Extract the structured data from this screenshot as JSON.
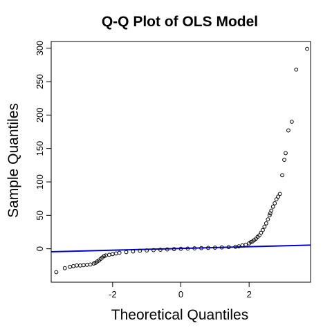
{
  "chart_data": {
    "type": "scatter",
    "title": "Q-Q Plot of OLS Model",
    "xlabel": "Theoretical Quantiles",
    "ylabel": "Sample Quantiles",
    "xlim": [
      -3.8,
      3.8
    ],
    "ylim": [
      -50,
      310
    ],
    "x_ticks": [
      -2,
      0,
      2
    ],
    "x_tick_labels": [
      "-2",
      "0",
      "2"
    ],
    "y_ticks": [
      0,
      50,
      100,
      150,
      200,
      250,
      300
    ],
    "y_tick_labels": [
      "0",
      "50",
      "100",
      "150",
      "200",
      "250",
      "300"
    ],
    "grid": false,
    "reference_line": {
      "intercept": 0.5,
      "slope": 1.3,
      "color": "#0000cc"
    },
    "point_color": "#000000",
    "series": [
      {
        "values": [
          [
            -3.65,
            -35
          ],
          [
            -3.4,
            -29
          ],
          [
            -3.25,
            -27
          ],
          [
            -3.15,
            -26
          ],
          [
            -3.05,
            -25
          ],
          [
            -2.95,
            -25
          ],
          [
            -2.85,
            -24.5
          ],
          [
            -2.75,
            -24
          ],
          [
            -2.65,
            -23.5
          ],
          [
            -2.55,
            -22
          ],
          [
            -2.5,
            -21
          ],
          [
            -2.45,
            -19
          ],
          [
            -2.4,
            -17.5
          ],
          [
            -2.35,
            -15
          ],
          [
            -2.3,
            -13
          ],
          [
            -2.25,
            -11
          ],
          [
            -2.2,
            -10
          ],
          [
            -2.1,
            -9
          ],
          [
            -2.0,
            -8
          ],
          [
            -1.9,
            -7
          ],
          [
            -1.8,
            -6
          ],
          [
            -1.6,
            -5
          ],
          [
            -1.4,
            -4
          ],
          [
            -1.2,
            -3
          ],
          [
            -1.0,
            -2.5
          ],
          [
            -0.8,
            -2
          ],
          [
            -0.6,
            -1.5
          ],
          [
            -0.4,
            -1
          ],
          [
            -0.2,
            -0.5
          ],
          [
            0.0,
            0
          ],
          [
            0.2,
            0.3
          ],
          [
            0.4,
            0.6
          ],
          [
            0.6,
            1
          ],
          [
            0.8,
            1.3
          ],
          [
            1.0,
            1.7
          ],
          [
            1.2,
            2
          ],
          [
            1.4,
            2.5
          ],
          [
            1.6,
            3
          ],
          [
            1.7,
            3.6
          ],
          [
            1.8,
            5
          ],
          [
            1.9,
            6
          ],
          [
            2.0,
            8
          ],
          [
            2.05,
            10
          ],
          [
            2.1,
            11
          ],
          [
            2.15,
            13
          ],
          [
            2.2,
            15
          ],
          [
            2.25,
            18
          ],
          [
            2.3,
            20
          ],
          [
            2.35,
            24
          ],
          [
            2.4,
            28
          ],
          [
            2.45,
            33
          ],
          [
            2.5,
            38
          ],
          [
            2.55,
            44
          ],
          [
            2.6,
            50
          ],
          [
            2.62,
            53
          ],
          [
            2.65,
            57
          ],
          [
            2.7,
            63
          ],
          [
            2.75,
            68
          ],
          [
            2.8,
            74
          ],
          [
            2.85,
            78
          ],
          [
            2.9,
            82
          ],
          [
            2.97,
            110
          ],
          [
            3.03,
            133
          ],
          [
            3.07,
            143
          ],
          [
            3.15,
            177
          ],
          [
            3.25,
            190
          ],
          [
            3.38,
            268
          ],
          [
            3.7,
            299
          ]
        ]
      }
    ]
  }
}
